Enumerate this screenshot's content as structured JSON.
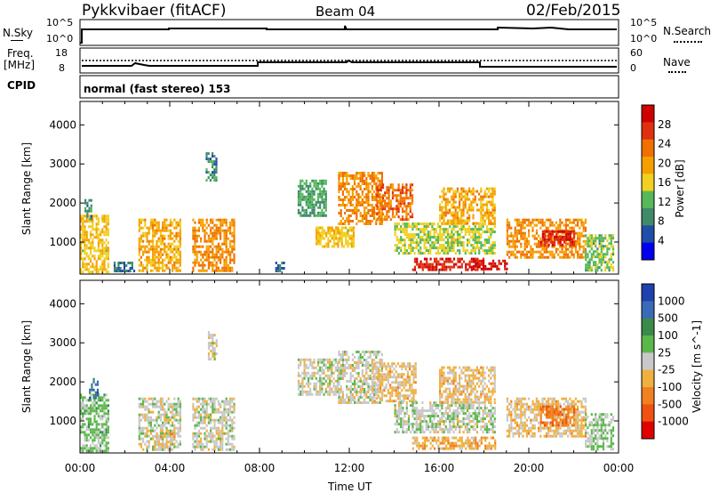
{
  "header": {
    "station": "Pykkvibaer (fitACF)",
    "beam": "Beam 04",
    "date": "02/Feb/2015"
  },
  "nsky_panel": {
    "left_label": "N.Sky",
    "right_label": "N.Search",
    "left_ticks": [
      "10^5",
      "10^0"
    ],
    "right_ticks": [
      "10^5",
      "10^0"
    ]
  },
  "freq_panel": {
    "left_label_1": "Freq.",
    "left_label_2": "[MHz]",
    "right_label": "Nave",
    "left_ticks": [
      "18",
      "8"
    ],
    "right_ticks": [
      "60",
      "0"
    ]
  },
  "cpid_panel": {
    "label": "CPID",
    "text": "normal (fast stereo) 153"
  },
  "colors": {
    "power_scale": [
      "#0000ee",
      "#1f4ea8",
      "#3f8a6a",
      "#55b85a",
      "#f0d020",
      "#f5a000",
      "#f07000",
      "#e03010",
      "#d00000"
    ],
    "velocity_scale": [
      "#2040b0",
      "#3a6ab8",
      "#3a8a4a",
      "#5ab84a",
      "#c8c8c8",
      "#f0b040",
      "#f08020",
      "#f05010",
      "#e00000"
    ]
  },
  "chart_data": [
    {
      "type": "heatmap",
      "title": "",
      "xlabel": "",
      "ylabel": "Slant Range [km]",
      "xlim": [
        "00:00",
        "24:00"
      ],
      "ylim": [
        180,
        4600
      ],
      "x_tick_labels": [],
      "y_tick_labels": [
        "1000",
        "2000",
        "3000",
        "4000"
      ],
      "colorbar": {
        "label": "Power [dB]",
        "ticks": [
          "28",
          "24",
          "20",
          "16",
          "12",
          "8",
          "4"
        ],
        "range": [
          0,
          30
        ]
      },
      "patches": [
        {
          "t0": 0.0,
          "t1": 1.3,
          "r0": 250,
          "r1": 1700,
          "v": 16
        },
        {
          "t0": 0.2,
          "t1": 0.5,
          "r0": 1600,
          "r1": 2100,
          "v": 8
        },
        {
          "t0": 1.5,
          "t1": 2.4,
          "r0": 250,
          "r1": 500,
          "v": 6
        },
        {
          "t0": 2.6,
          "t1": 4.5,
          "r0": 250,
          "r1": 1600,
          "v": 18
        },
        {
          "t0": 5.0,
          "t1": 6.9,
          "r0": 250,
          "r1": 1600,
          "v": 20
        },
        {
          "t0": 5.6,
          "t1": 6.1,
          "r0": 2600,
          "r1": 3300,
          "v": 8
        },
        {
          "t0": 8.7,
          "t1": 9.1,
          "r0": 250,
          "r1": 500,
          "v": 6
        },
        {
          "t0": 9.7,
          "t1": 11.0,
          "r0": 1700,
          "r1": 2600,
          "v": 10
        },
        {
          "t0": 10.5,
          "t1": 12.2,
          "r0": 900,
          "r1": 1400,
          "v": 16
        },
        {
          "t0": 11.5,
          "t1": 13.5,
          "r0": 1500,
          "r1": 2800,
          "v": 20
        },
        {
          "t0": 13.2,
          "t1": 14.8,
          "r0": 1600,
          "r1": 2500,
          "v": 22
        },
        {
          "t0": 14.8,
          "t1": 18.0,
          "r0": 300,
          "r1": 600,
          "v": 26
        },
        {
          "t0": 14.0,
          "t1": 18.5,
          "r0": 700,
          "r1": 1500,
          "v": 14
        },
        {
          "t0": 17.5,
          "t1": 19.0,
          "r0": 300,
          "r1": 550,
          "v": 28
        },
        {
          "t0": 16.0,
          "t1": 18.5,
          "r0": 1500,
          "r1": 2400,
          "v": 18
        },
        {
          "t0": 19.0,
          "t1": 22.5,
          "r0": 600,
          "r1": 1600,
          "v": 20
        },
        {
          "t0": 20.5,
          "t1": 22.0,
          "r0": 900,
          "r1": 1300,
          "v": 26
        },
        {
          "t0": 22.5,
          "t1": 23.8,
          "r0": 300,
          "r1": 1200,
          "v": 12
        }
      ]
    },
    {
      "type": "heatmap",
      "title": "",
      "xlabel": "Time UT",
      "ylabel": "Slant Range [km]",
      "xlim": [
        "00:00",
        "24:00"
      ],
      "ylim": [
        180,
        4600
      ],
      "x_tick_labels": [
        "00:00",
        "04:00",
        "08:00",
        "12:00",
        "16:00",
        "20:00",
        "00:00"
      ],
      "y_tick_labels": [
        "1000",
        "2000",
        "3000",
        "4000"
      ],
      "colorbar": {
        "label": "Velocity [m s^-1]",
        "ticks": [
          "1000",
          "500",
          "100",
          "25",
          "-25",
          "-100",
          "-500",
          "-1000"
        ],
        "range": [
          -1200,
          1200
        ]
      },
      "patches": [
        {
          "t0": 0.0,
          "t1": 1.3,
          "r0": 250,
          "r1": 1700,
          "v": 200
        },
        {
          "t0": 0.4,
          "t1": 0.8,
          "r0": 1600,
          "r1": 2100,
          "v": 800
        },
        {
          "t0": 2.6,
          "t1": 4.5,
          "r0": 250,
          "r1": 1600,
          "v": 0
        },
        {
          "t0": 3.3,
          "t1": 4.2,
          "r0": 300,
          "r1": 700,
          "v": -200
        },
        {
          "t0": 5.0,
          "t1": 6.9,
          "r0": 250,
          "r1": 1600,
          "v": 0
        },
        {
          "t0": 5.7,
          "t1": 6.1,
          "r0": 2600,
          "r1": 3300,
          "v": 0
        },
        {
          "t0": 9.7,
          "t1": 11.5,
          "r0": 1700,
          "r1": 2600,
          "v": 0
        },
        {
          "t0": 11.5,
          "t1": 13.5,
          "r0": 1500,
          "r1": 2800,
          "v": 0
        },
        {
          "t0": 13.0,
          "t1": 15.0,
          "r0": 1500,
          "r1": 2500,
          "v": -200
        },
        {
          "t0": 14.8,
          "t1": 18.5,
          "r0": 300,
          "r1": 600,
          "v": -300
        },
        {
          "t0": 14.0,
          "t1": 18.5,
          "r0": 700,
          "r1": 1500,
          "v": 40
        },
        {
          "t0": 16.0,
          "t1": 18.5,
          "r0": 1500,
          "r1": 2400,
          "v": -200
        },
        {
          "t0": 19.0,
          "t1": 22.5,
          "r0": 600,
          "r1": 1600,
          "v": -200
        },
        {
          "t0": 20.5,
          "t1": 22.0,
          "r0": 900,
          "r1": 1400,
          "v": -600
        },
        {
          "t0": 22.5,
          "t1": 23.8,
          "r0": 300,
          "r1": 1200,
          "v": 150
        }
      ]
    }
  ]
}
